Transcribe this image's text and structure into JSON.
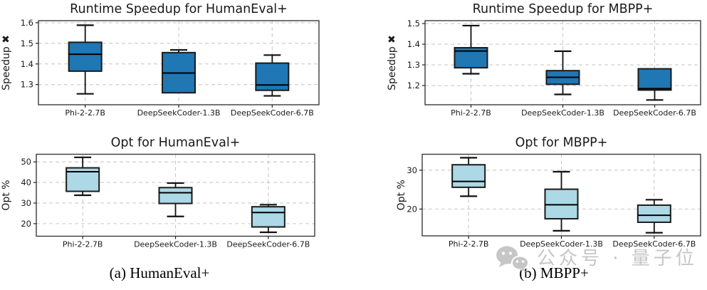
{
  "figure": {
    "background": "#ffffff",
    "grid_color": "#c9c9c9",
    "spine_color": "#3a3a3a",
    "text_color": "#1a1a1a",
    "box_edge_color": "#1b1b1b",
    "median_color": "#000000",
    "dark_blue": "#1f77b4",
    "light_blue": "#add8e6"
  },
  "captions": {
    "a": "(a) HumanEval+",
    "b": "(b) MBPP+"
  },
  "watermark": {
    "icon": "wechat-icon",
    "text": "公众号 · 量子位",
    "color": "#c6c6c6"
  },
  "chart_data": [
    {
      "type": "box",
      "title": "Runtime Speedup for HumanEval+",
      "ylabel": "Speedup ✖",
      "categories": [
        "Phi-2-2.7B",
        "DeepSeekCoder-1.3B",
        "DeepSeekCoder-6.7B"
      ],
      "ytick_values": [
        1.3,
        1.4,
        1.5,
        1.6
      ],
      "ytick_labels": [
        "1.3",
        "1.4",
        "1.5",
        "1.6"
      ],
      "ylim": [
        1.202,
        1.61
      ],
      "grid": "dashed",
      "legend": "none",
      "box_fill": "#1f77b4",
      "series": [
        {
          "name": "Phi-2-2.7B",
          "whisker_low": 1.255,
          "q1": 1.365,
          "median": 1.447,
          "q3": 1.505,
          "whisker_high": 1.588
        },
        {
          "name": "DeepSeekCoder-1.3B",
          "whisker_low": 1.26,
          "q1": 1.26,
          "median": 1.356,
          "q3": 1.455,
          "whisker_high": 1.468
        },
        {
          "name": "DeepSeekCoder-6.7B",
          "whisker_low": 1.245,
          "q1": 1.272,
          "median": 1.298,
          "q3": 1.404,
          "whisker_high": 1.443
        }
      ]
    },
    {
      "type": "box",
      "title": "Runtime Speedup for MBPP+",
      "ylabel": "Speedup ✖",
      "categories": [
        "Phi-2-2.7B",
        "DeepSeekCoder-1.3B",
        "DeepSeekCoder-6.7B"
      ],
      "ytick_values": [
        1.2,
        1.3,
        1.4,
        1.5
      ],
      "ytick_labels": [
        "1.2",
        "1.3",
        "1.4",
        "1.5"
      ],
      "ylim": [
        1.107,
        1.514
      ],
      "grid": "dashed",
      "legend": "none",
      "box_fill": "#1f77b4",
      "series": [
        {
          "name": "Phi-2-2.7B",
          "whisker_low": 1.257,
          "q1": 1.286,
          "median": 1.367,
          "q3": 1.383,
          "whisker_high": 1.49
        },
        {
          "name": "DeepSeekCoder-1.3B",
          "whisker_low": 1.157,
          "q1": 1.206,
          "median": 1.24,
          "q3": 1.272,
          "whisker_high": 1.366
        },
        {
          "name": "DeepSeekCoder-6.7B",
          "whisker_low": 1.13,
          "q1": 1.178,
          "median": 1.185,
          "q3": 1.281,
          "whisker_high": 1.281
        }
      ]
    },
    {
      "type": "box",
      "title": "Opt for HumanEval+",
      "ylabel": "Opt %",
      "categories": [
        "Phi-2-2.7B",
        "DeepSeekCoder-1.3B",
        "DeepSeekCoder-6.7B"
      ],
      "ytick_values": [
        20,
        30,
        40,
        50
      ],
      "ytick_labels": [
        "20",
        "30",
        "40",
        "50"
      ],
      "ylim": [
        13.9,
        53.7
      ],
      "grid": "dashed",
      "legend": "none",
      "box_fill": "#add8e6",
      "series": [
        {
          "name": "Phi-2-2.7B",
          "whisker_low": 33.8,
          "q1": 35.7,
          "median": 45.2,
          "q3": 47.1,
          "whisker_high": 52.2
        },
        {
          "name": "DeepSeekCoder-1.3B",
          "whisker_low": 23.5,
          "q1": 29.8,
          "median": 35.0,
          "q3": 37.5,
          "whisker_high": 39.7
        },
        {
          "name": "DeepSeekCoder-6.7B",
          "whisker_low": 15.8,
          "q1": 18.4,
          "median": 25.4,
          "q3": 28.2,
          "whisker_high": 29.2
        }
      ]
    },
    {
      "type": "box",
      "title": "Opt for MBPP+",
      "ylabel": "Opt %",
      "categories": [
        "Phi-2-2.7B",
        "DeepSeekCoder-1.3B",
        "DeepSeekCoder-6.7B"
      ],
      "ytick_values": [
        20,
        30
      ],
      "ytick_labels": [
        "20",
        "30"
      ],
      "ylim": [
        13.1,
        34.1
      ],
      "grid": "dashed",
      "legend": "none",
      "box_fill": "#add8e6",
      "series": [
        {
          "name": "Phi-2-2.7B",
          "whisker_low": 23.3,
          "q1": 25.6,
          "median": 27.1,
          "q3": 31.4,
          "whisker_high": 33.2
        },
        {
          "name": "DeepSeekCoder-1.3B",
          "whisker_low": 14.4,
          "q1": 17.5,
          "median": 21.1,
          "q3": 25.1,
          "whisker_high": 29.6
        },
        {
          "name": "DeepSeekCoder-6.7B",
          "whisker_low": 13.9,
          "q1": 16.6,
          "median": 18.4,
          "q3": 21.0,
          "whisker_high": 22.4
        }
      ]
    }
  ]
}
